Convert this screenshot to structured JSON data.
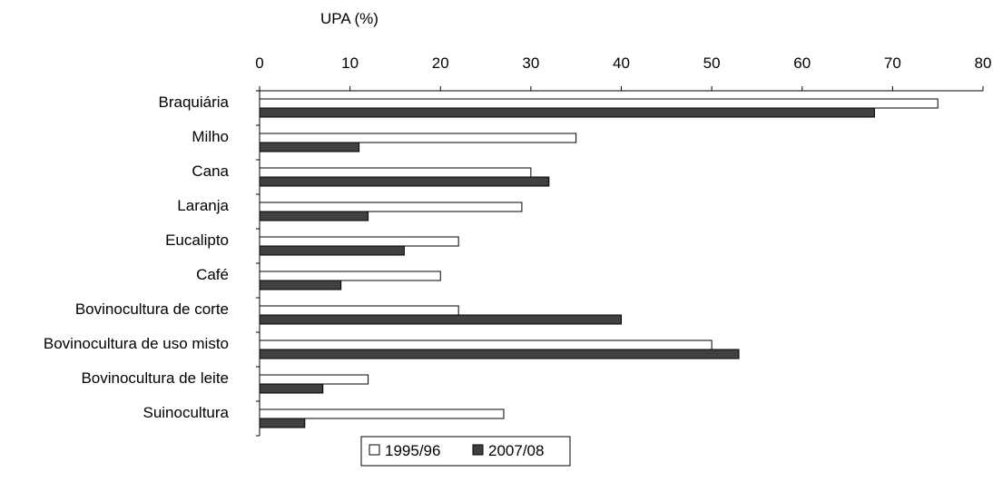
{
  "chart_data": {
    "type": "bar",
    "orientation": "horizontal",
    "xlabel": "UPA (%)",
    "xlim": [
      0,
      80
    ],
    "x_ticks": [
      0,
      10,
      20,
      30,
      40,
      50,
      60,
      70,
      80
    ],
    "x_tick_labels": [
      "0",
      "10",
      "20",
      "30",
      "40",
      "50",
      "60",
      "70",
      "80"
    ],
    "x_axis_position": "top",
    "grid": false,
    "legend_position": "bottom-center",
    "categories": [
      "Braquiária",
      "Milho",
      "Cana",
      "Laranja",
      "Eucalipto",
      "Café",
      "Bovinocultura de corte",
      "Bovinocultura de uso misto",
      "Bovinocultura de leite",
      "Suinocultura"
    ],
    "series": [
      {
        "name": "1995/96",
        "color": "#ffffff",
        "values": [
          75,
          35,
          30,
          29,
          22,
          20,
          22,
          50,
          12,
          27
        ]
      },
      {
        "name": "2007/08",
        "color": "#404040",
        "values": [
          68,
          11,
          32,
          12,
          16,
          9,
          40,
          53,
          7,
          5
        ]
      }
    ]
  }
}
